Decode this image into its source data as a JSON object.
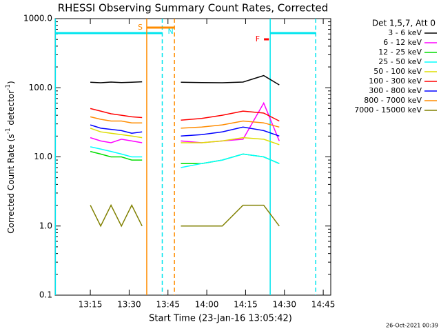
{
  "chart_data": {
    "type": "line",
    "title": "RHESSI Observing Summary Count Rates, Corrected",
    "xlabel": "Start Time (23-Jan-16 13:05:42)",
    "ylabel_parts": [
      "Corrected Count Rate (s",
      "-1",
      " detector",
      "-1",
      ")"
    ],
    "legend_title": "Det 1,5,7, Att 0",
    "timestamp": "26-Oct-2021 00:39",
    "log_y": true,
    "xlim": [
      781.4,
      887.9
    ],
    "ylim": [
      0.1,
      1000
    ],
    "xticks": [
      {
        "value": 795,
        "label": "13:15"
      },
      {
        "value": 810,
        "label": "13:30"
      },
      {
        "value": 825,
        "label": "13:45"
      },
      {
        "value": 840,
        "label": "14:00"
      },
      {
        "value": 855,
        "label": "14:15"
      },
      {
        "value": 870,
        "label": "14:30"
      },
      {
        "value": 885,
        "label": "14:45"
      }
    ],
    "yticks": [
      0.1,
      {
        "value": 1,
        "label": "1.0"
      },
      {
        "value": 10,
        "label": "10.0"
      },
      {
        "value": 100,
        "label": "100.0"
      },
      {
        "value": 1000,
        "label": "1000.0"
      }
    ],
    "x": [
      795,
      799,
      803,
      807,
      811,
      815,
      822,
      830,
      838,
      846,
      854,
      862,
      868
    ],
    "series": [
      {
        "name": "3 - 6 keV",
        "color": "#000000",
        "values": [
          120,
          118,
          121,
          119,
          120,
          122,
          null,
          120,
          119,
          118,
          121,
          150,
          110
        ]
      },
      {
        "name": "6 - 12 keV",
        "color": "#ff00ff",
        "values": [
          19,
          17,
          16,
          18,
          17,
          16,
          null,
          17,
          16,
          17,
          18,
          60,
          17
        ]
      },
      {
        "name": "12 - 25 keV",
        "color": "#00dd00",
        "values": [
          12,
          11,
          10,
          10,
          9,
          9,
          null,
          8,
          8,
          9,
          11,
          10,
          8
        ]
      },
      {
        "name": "25 - 50 keV",
        "color": "#00ffff",
        "values": [
          14,
          13,
          12,
          11,
          10,
          10,
          null,
          7,
          8,
          9,
          11,
          10,
          8
        ]
      },
      {
        "name": "50 - 100 keV",
        "color": "#dddd00",
        "values": [
          26,
          23,
          22,
          21,
          20,
          19,
          null,
          16,
          16,
          17,
          19,
          18,
          15
        ]
      },
      {
        "name": "100 - 300 keV",
        "color": "#ff0000",
        "values": [
          50,
          46,
          42,
          40,
          38,
          37,
          null,
          34,
          36,
          40,
          46,
          43,
          33
        ]
      },
      {
        "name": "300 - 800 keV",
        "color": "#0000ff",
        "values": [
          29,
          26,
          25,
          24,
          22,
          23,
          null,
          20,
          21,
          23,
          27,
          24,
          20
        ]
      },
      {
        "name": "800 - 7000 keV",
        "color": "#ff8c00",
        "values": [
          38,
          35,
          33,
          33,
          31,
          31,
          null,
          26,
          27,
          29,
          33,
          31,
          27
        ]
      },
      {
        "name": "7000 - 15000 keV",
        "color": "#808000",
        "values": [
          2,
          1,
          2,
          1,
          2,
          1,
          null,
          1,
          1,
          1,
          2,
          2,
          1
        ]
      }
    ],
    "intervals": [
      {
        "label": "N",
        "color": "#00e5ee",
        "x": [
          781.5,
          822.8
        ],
        "boundaries": true
      },
      {
        "label": "S",
        "color": "#ff8c00",
        "x": [
          816.8,
          827.5
        ],
        "boundaries": true
      },
      {
        "color": "#00e5ee",
        "x": [
          864.5,
          882.1
        ],
        "boundaries": true
      },
      {
        "label": "F",
        "color": "#ff0000",
        "x": [
          862.1,
          864.0
        ],
        "boundaries": false
      }
    ]
  }
}
